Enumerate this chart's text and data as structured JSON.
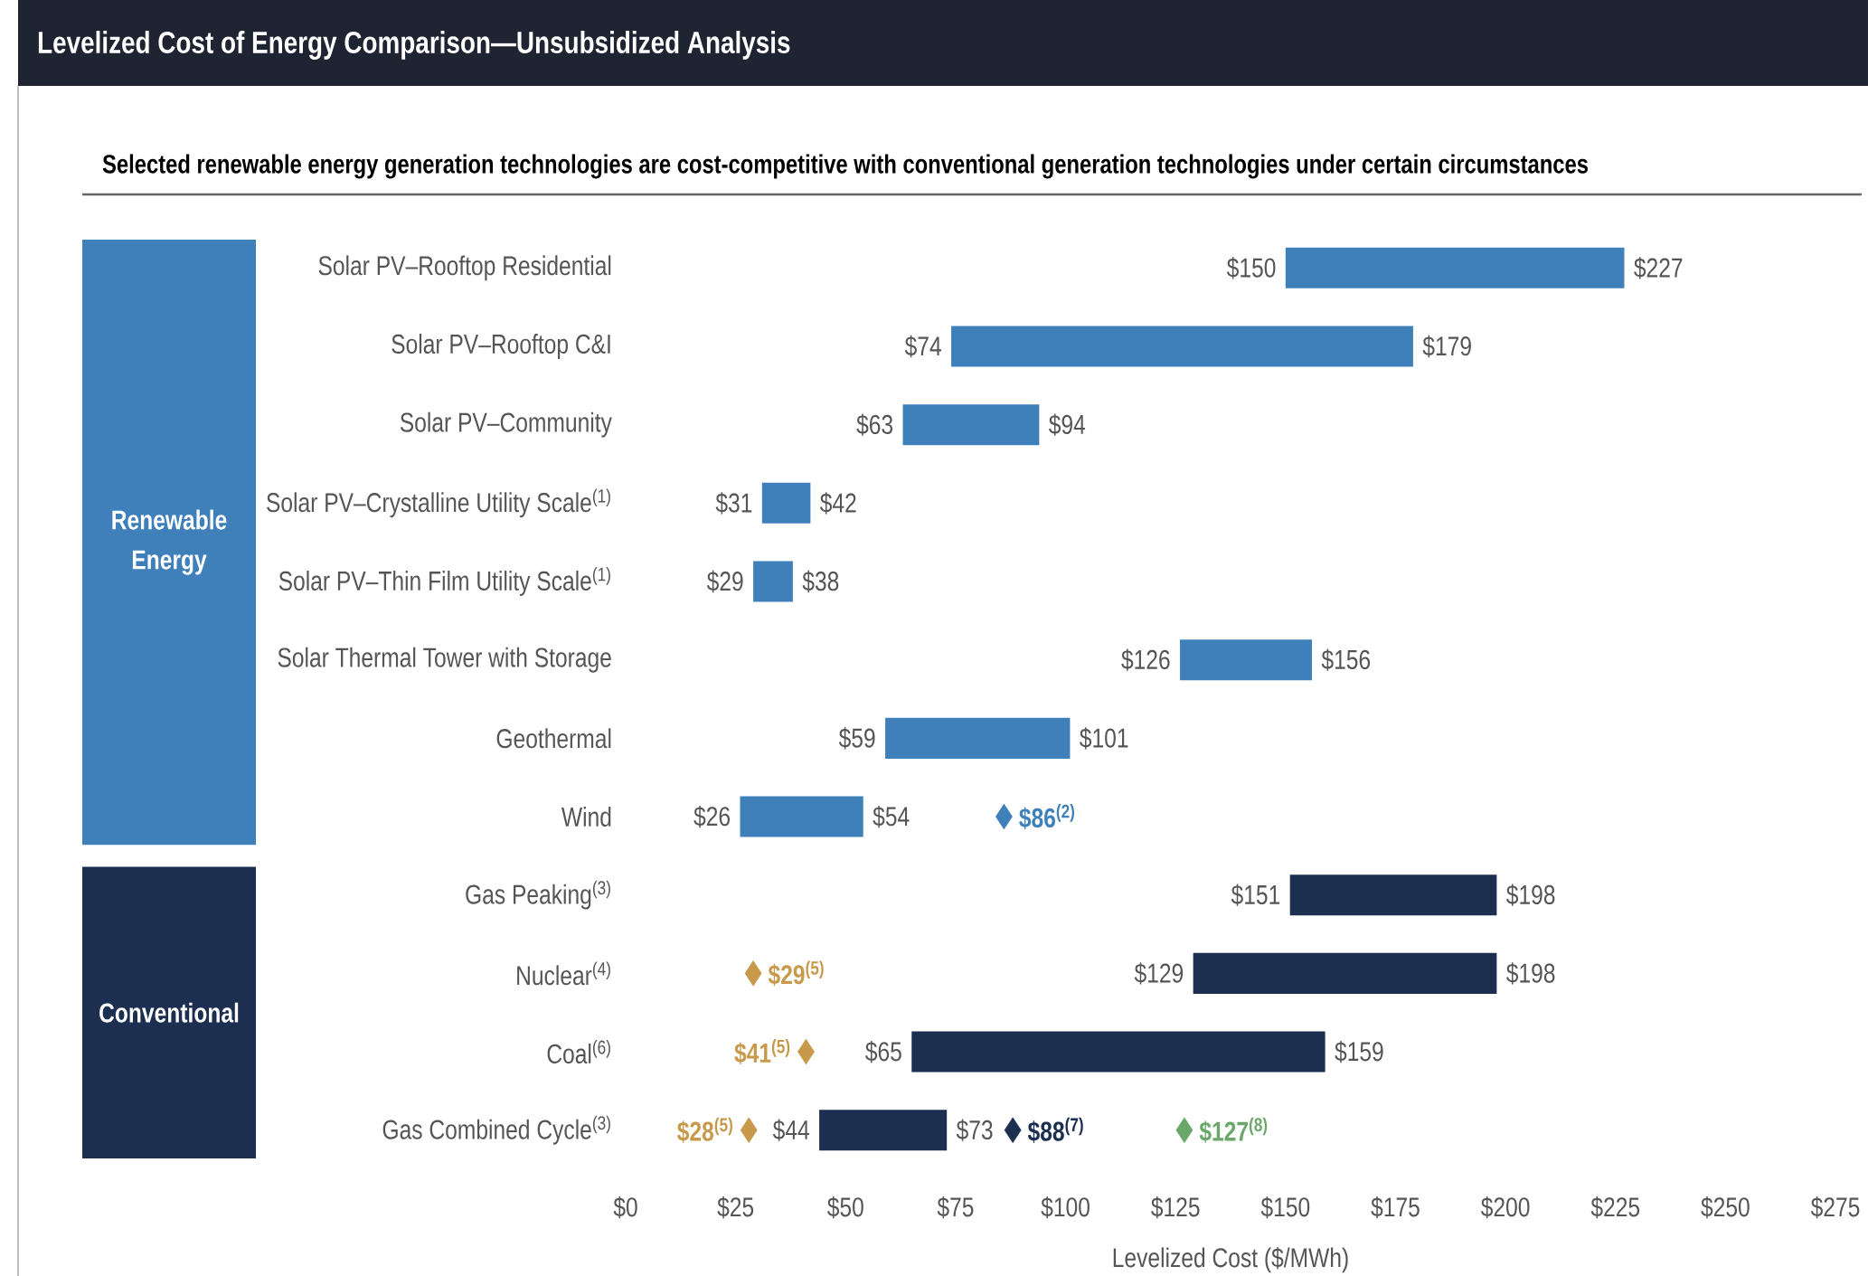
{
  "chart_data": {
    "type": "bar",
    "orientation": "horizontal",
    "title": "Levelized Cost of Energy Comparison—Unsubsidized Analysis",
    "subtitle": "Selected renewable energy generation technologies are cost-competitive with conventional generation technologies under certain circumstances",
    "xlabel": "Levelized Cost ($/MWh)",
    "categories": [
      "Solar PV–Rooftop Residential",
      "Solar PV–Rooftop C&I",
      "Solar PV–Community",
      "Solar PV–Crystalline Utility Scale$^{(1)}$",
      "Solar PV–Thin Film Utility Scale$^{(1)}$",
      "Solar Thermal Tower with Storage",
      "Geothermal",
      "Wind",
      "Gas Peaking$^{(3)}$",
      "Nuclear$^{(4)}$",
      "Coal$^{(6)}$",
      "Gas Combined Cycle$^{(3)}$"
    ],
    "base": [
      150,
      74,
      63,
      31,
      29,
      126,
      59,
      26,
      151,
      129,
      65,
      44
    ],
    "values": [
      77,
      105,
      31,
      11,
      9,
      30,
      42,
      28,
      47,
      69,
      94,
      29
    ],
    "colors": [
      "#3f80bb",
      "#3f80bb",
      "#3f80bb",
      "#3f80bb",
      "#3f80bb",
      "#3f80bb",
      "#3f80bb",
      "#3f80bb",
      "#1c2f50",
      "#1c2f50",
      "#1c2f50",
      "#1c2f50"
    ],
    "series": [
      {
        "type": "scatter",
        "marker": "diamond",
        "color": "#3f80bb",
        "x": [
          "Wind"
        ],
        "values": [
          86
        ],
        "value_labels": [
          "$86$^{(2)}$"
        ]
      },
      {
        "type": "scatter",
        "marker": "diamond",
        "color": "#c8994a",
        "x": [
          "Nuclear$^{(4)}$",
          "Coal$^{(6)}$",
          "Gas Combined Cycle$^{(3)}$"
        ],
        "values": [
          29,
          41,
          28
        ],
        "value_labels": [
          "$29$^{(5)}$",
          "$41$^{(5)}$",
          "$28$^{(5)}$"
        ]
      },
      {
        "type": "scatter",
        "marker": "diamond",
        "color": "#1c2f50",
        "x": [
          "Gas Combined Cycle$^{(3)}$"
        ],
        "values": [
          88
        ],
        "value_labels": [
          "$88$^{(7)}$"
        ]
      },
      {
        "type": "scatter",
        "marker": "diamond",
        "color": "#6aa86a",
        "x": [
          "Gas Combined Cycle$^{(3)}$"
        ],
        "values": [
          127
        ],
        "value_labels": [
          "$127$^{(8)}$"
        ]
      }
    ],
    "xlim": [
      0,
      275
    ],
    "xticks": [
      {
        "value": 0,
        "label": "$0"
      },
      {
        "value": 25,
        "label": "$25"
      },
      {
        "value": 50,
        "label": "$50"
      },
      {
        "value": 75,
        "label": "$75"
      },
      {
        "value": 100,
        "label": "$100"
      },
      {
        "value": 125,
        "label": "$125"
      },
      {
        "value": 150,
        "label": "$150"
      },
      {
        "value": 175,
        "label": "$175"
      },
      {
        "value": 200,
        "label": "$200"
      },
      {
        "value": 225,
        "label": "$225"
      },
      {
        "value": 250,
        "label": "$250"
      },
      {
        "value": 275,
        "label": "$275"
      }
    ],
    "annotations": [
      "Renewable Energy",
      "Conventional",
      {
        "text": "$150",
        "x": 150,
        "y": "Solar PV–Rooftop Residential"
      },
      {
        "text": "$227",
        "x": 227,
        "y": "Solar PV–Rooftop Residential"
      },
      {
        "text": "$74",
        "x": 74,
        "y": "Solar PV–Rooftop C&I"
      },
      {
        "text": "$179",
        "x": 179,
        "y": "Solar PV–Rooftop C&I"
      },
      {
        "text": "$63",
        "x": 63,
        "y": "Solar PV–Community"
      },
      {
        "text": "$94",
        "x": 94,
        "y": "Solar PV–Community"
      },
      {
        "text": "$31",
        "x": 31,
        "y": "Solar PV–Crystalline Utility Scale$^{(1)}$"
      },
      {
        "text": "$42",
        "x": 42,
        "y": "Solar PV–Crystalline Utility Scale$^{(1)}$"
      },
      {
        "text": "$29",
        "x": 29,
        "y": "Solar PV–Thin Film Utility Scale$^{(1)}$"
      },
      {
        "text": "$38",
        "x": 38,
        "y": "Solar PV–Thin Film Utility Scale$^{(1)}$"
      },
      {
        "text": "$126",
        "x": 126,
        "y": "Solar Thermal Tower with Storage"
      },
      {
        "text": "$156",
        "x": 156,
        "y": "Solar Thermal Tower with Storage"
      },
      {
        "text": "$59",
        "x": 59,
        "y": "Geothermal"
      },
      {
        "text": "$101",
        "x": 101,
        "y": "Geothermal"
      },
      {
        "text": "$26",
        "x": 26,
        "y": "Wind"
      },
      {
        "text": "$54",
        "x": 54,
        "y": "Wind"
      },
      {
        "text": "$151",
        "x": 151,
        "y": "Gas Peaking$^{(3)}$"
      },
      {
        "text": "$198",
        "x": 198,
        "y": "Gas Peaking$^{(3)}$"
      },
      {
        "text": "$129",
        "x": 129,
        "y": "Nuclear$^{(4)}$"
      },
      {
        "text": "$198",
        "x": 198,
        "y": "Nuclear$^{(4)}$"
      },
      {
        "text": "$65",
        "x": 65,
        "y": "Coal$^{(6)}$"
      },
      {
        "text": "$159",
        "x": 159,
        "y": "Coal$^{(6)}$"
      },
      {
        "text": "$44",
        "x": 44,
        "y": "Gas Combined Cycle$^{(3)}$"
      },
      {
        "text": "$73",
        "x": 73,
        "y": "Gas Combined Cycle$^{(3)}$"
      }
    ]
  }
}
